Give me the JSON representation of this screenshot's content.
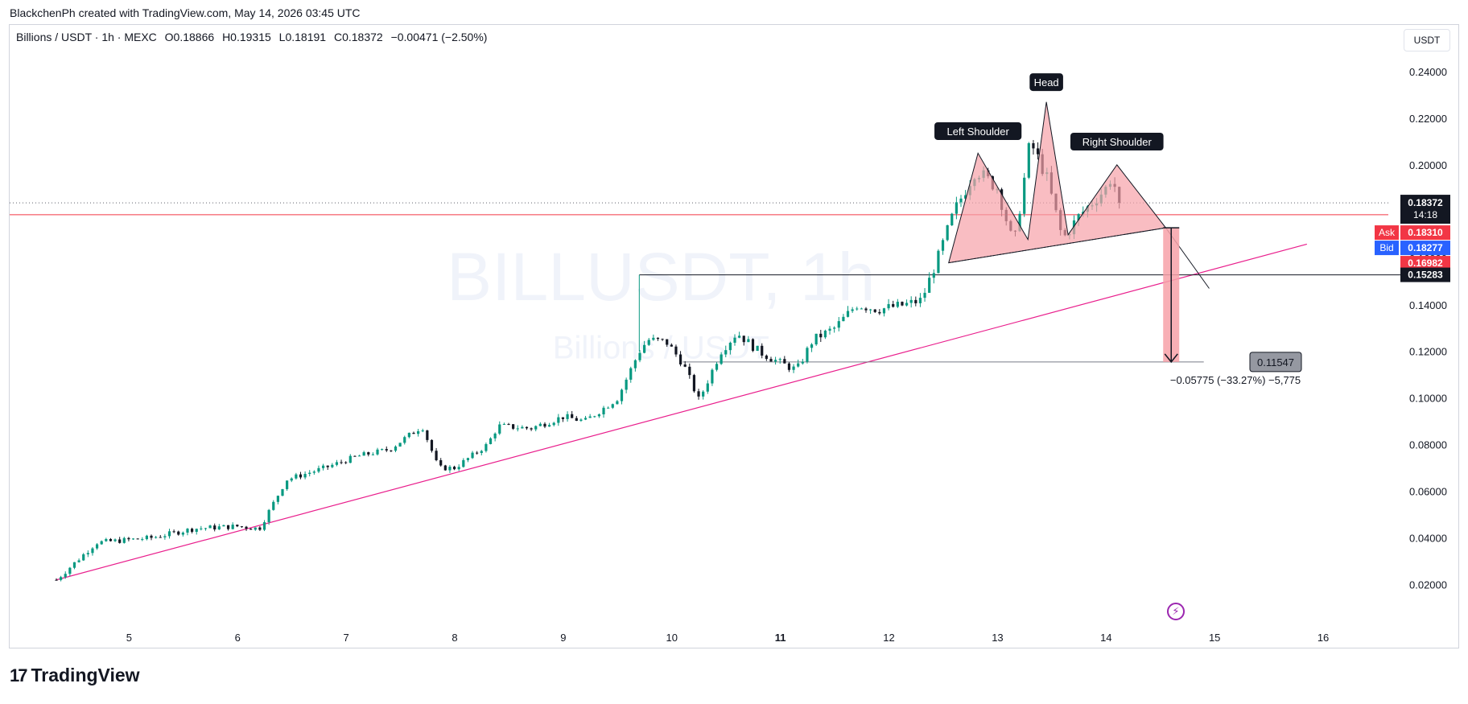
{
  "header": {
    "credit": "BlackchenPh created with TradingView.com, May 14, 2026 03:45 UTC"
  },
  "legend": {
    "symbol": "Billions / USDT · 1h · MEXC",
    "open": "O0.18866",
    "high": "H0.19315",
    "low": "L0.18191",
    "close": "C0.18372",
    "change": "−0.00471 (−2.50%)"
  },
  "currency": "USDT",
  "watermark": {
    "line1": "BILLUSDT, 1h",
    "line2": "Billions / USDT"
  },
  "footer": {
    "brand": "TradingView",
    "logo_mark": "17"
  },
  "colors": {
    "up": "#089981",
    "down": "#131722",
    "trend": "#e91e8c",
    "ask": "#f23645",
    "bid": "#2962ff",
    "pattern_fill": "#f7a1a8"
  },
  "chart_data": {
    "type": "candlestick",
    "ylim": [
      0.005,
      0.25
    ],
    "y_ticks": [
      "0.24000",
      "0.22000",
      "0.20000",
      "0.18000",
      "0.16000",
      "0.14000",
      "0.12000",
      "0.10000",
      "0.08000",
      "0.06000",
      "0.04000",
      "0.02000"
    ],
    "x_ticks": [
      "5",
      "6",
      "7",
      "8",
      "9",
      "10",
      "11",
      "12",
      "13",
      "14",
      "15",
      "16"
    ],
    "x_tick_values": [
      5,
      6,
      7,
      8,
      9,
      10,
      11,
      12,
      13,
      14,
      15,
      16
    ],
    "xlim": [
      3.9,
      16.6
    ],
    "price_path": [
      [
        4.33,
        0.022
      ],
      [
        4.7,
        0.038
      ],
      [
        5.2,
        0.04
      ],
      [
        5.6,
        0.044
      ],
      [
        6.0,
        0.045
      ],
      [
        6.2,
        0.044
      ],
      [
        6.45,
        0.065
      ],
      [
        6.8,
        0.07
      ],
      [
        7.1,
        0.075
      ],
      [
        7.4,
        0.078
      ],
      [
        7.7,
        0.088
      ],
      [
        7.85,
        0.07
      ],
      [
        8.0,
        0.07
      ],
      [
        8.3,
        0.08
      ],
      [
        8.4,
        0.088
      ],
      [
        8.7,
        0.087
      ],
      [
        9.0,
        0.092
      ],
      [
        9.2,
        0.09
      ],
      [
        9.5,
        0.1
      ],
      [
        9.7,
        0.12
      ],
      [
        9.78,
        0.125
      ],
      [
        9.95,
        0.124
      ],
      [
        10.1,
        0.115
      ],
      [
        10.25,
        0.099
      ],
      [
        10.45,
        0.12
      ],
      [
        10.6,
        0.128
      ],
      [
        10.8,
        0.12
      ],
      [
        11.0,
        0.115
      ],
      [
        11.15,
        0.112
      ],
      [
        11.3,
        0.125
      ],
      [
        11.5,
        0.13
      ],
      [
        11.7,
        0.14
      ],
      [
        11.9,
        0.138
      ],
      [
        12.15,
        0.14
      ],
      [
        12.3,
        0.142
      ],
      [
        12.45,
        0.16
      ],
      [
        12.6,
        0.18
      ],
      [
        12.8,
        0.198
      ],
      [
        13.0,
        0.19
      ],
      [
        13.15,
        0.165
      ],
      [
        13.3,
        0.21
      ],
      [
        13.45,
        0.195
      ],
      [
        13.6,
        0.168
      ],
      [
        13.75,
        0.178
      ],
      [
        14.0,
        0.19
      ],
      [
        14.05,
        0.195
      ],
      [
        14.13,
        0.18372
      ]
    ],
    "last_price": "0.18372",
    "countdown": "14:18",
    "ask": {
      "label": "Ask",
      "value": "0.18310"
    },
    "bid": {
      "label": "Bid",
      "value": "0.18277"
    },
    "red_level": "0.16982",
    "hline_level": "0.15283",
    "target_level": "0.11547",
    "measure_text": "−0.05775 (−33.27%) −5,775",
    "annotations": [
      {
        "text": "Left Shoulder",
        "x": 12.82,
        "y": 0.2055
      },
      {
        "text": "Head",
        "x": 13.45,
        "y": 0.2265
      },
      {
        "text": "Right Shoulder",
        "x": 14.1,
        "y": 0.201
      }
    ],
    "pattern_vertices": [
      [
        12.55,
        0.158
      ],
      [
        12.82,
        0.205
      ],
      [
        13.28,
        0.168
      ],
      [
        13.45,
        0.227
      ],
      [
        13.65,
        0.17
      ],
      [
        14.1,
        0.2
      ],
      [
        14.55,
        0.173
      ]
    ],
    "neckline": [
      [
        12.55,
        0.158
      ],
      [
        14.55,
        0.173
      ]
    ],
    "trendline": [
      [
        4.33,
        0.022
      ],
      [
        15.85,
        0.166
      ]
    ],
    "breakdown_line": [
      [
        14.55,
        0.173
      ],
      [
        14.95,
        0.147
      ]
    ],
    "hline_span": [
      9.7,
      15.0
    ],
    "target_line_span": [
      10.1,
      14.9
    ],
    "projection_x": 14.6,
    "projection_range": [
      0.173,
      0.11547
    ]
  }
}
